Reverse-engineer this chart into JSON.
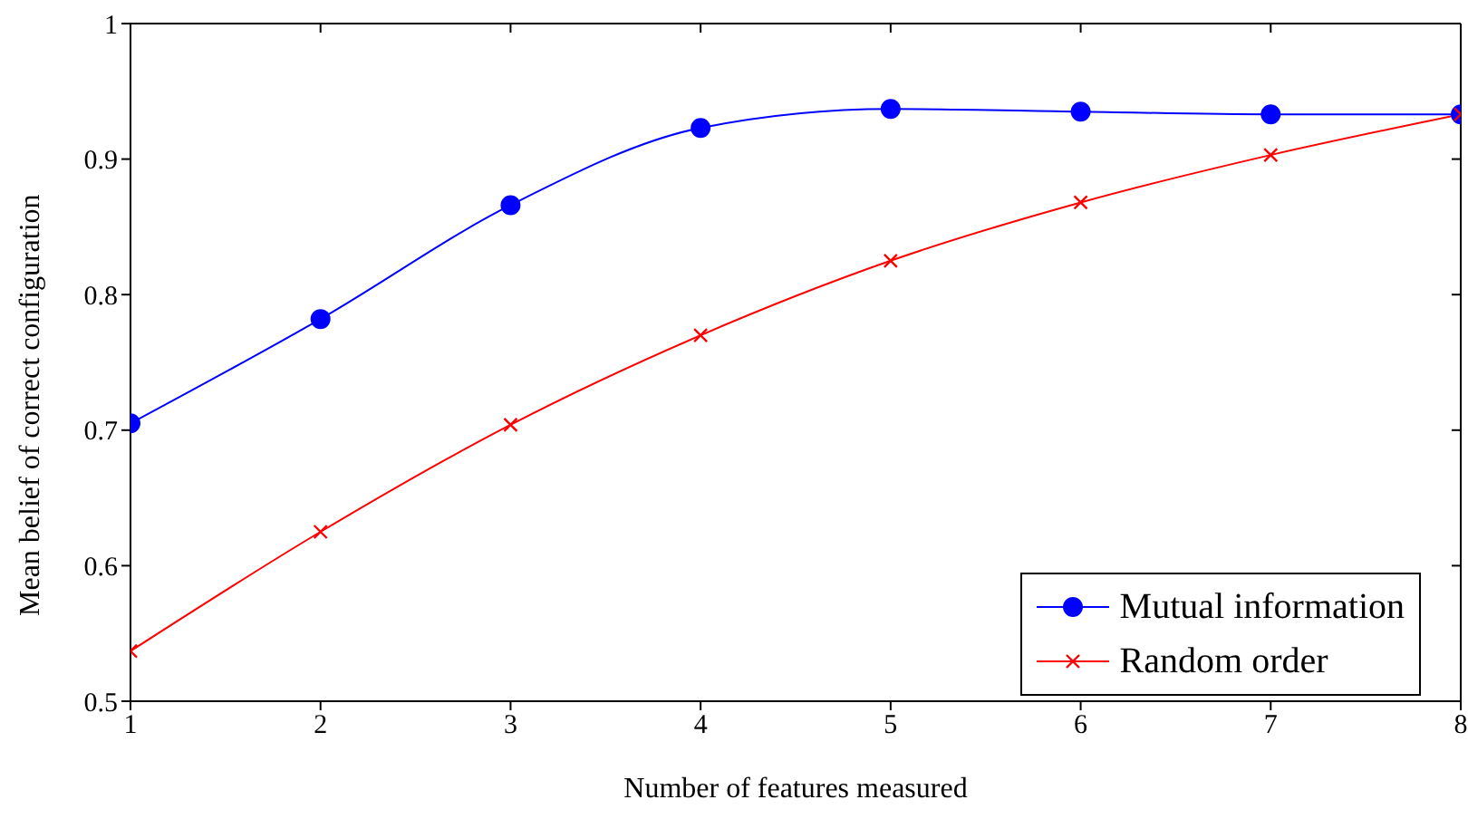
{
  "chart_data": {
    "type": "line",
    "xlabel": "Number of features measured",
    "ylabel": "Mean belief of correct configuration",
    "x": [
      1,
      2,
      3,
      4,
      5,
      6,
      7,
      8
    ],
    "xlim": [
      1,
      8
    ],
    "xticks": [
      1,
      2,
      3,
      4,
      5,
      6,
      7,
      8
    ],
    "ylim": [
      0.5,
      1
    ],
    "yticks": [
      0.5,
      0.6,
      0.7,
      0.8,
      0.9,
      1
    ],
    "grid": false,
    "legend": "bottom right",
    "series": [
      {
        "name": "Mutual information",
        "color": "#0000ff",
        "marker": "circle",
        "values": [
          0.705,
          0.782,
          0.866,
          0.923,
          0.937,
          0.935,
          0.933,
          0.933
        ]
      },
      {
        "name": "Random order",
        "color": "#ff0000",
        "marker": "cross",
        "values": [
          0.537,
          0.625,
          0.704,
          0.77,
          0.825,
          0.868,
          0.903,
          0.933
        ]
      }
    ]
  }
}
